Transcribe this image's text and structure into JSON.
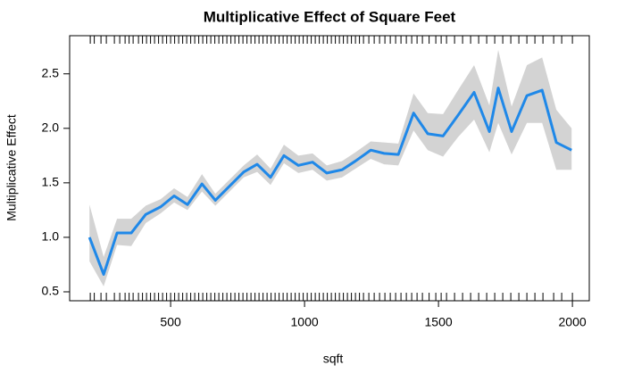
{
  "chart_data": {
    "type": "line",
    "title": "Multiplicative Effect of Square Feet",
    "x_label": "sqft",
    "y_label": "Multiplicative Effect",
    "x": [
      197,
      250,
      300,
      353,
      407,
      463,
      513,
      563,
      617,
      667,
      720,
      773,
      823,
      873,
      923,
      977,
      1030,
      1083,
      1140,
      1190,
      1247,
      1297,
      1350,
      1407,
      1460,
      1517,
      1573,
      1633,
      1690,
      1723,
      1773,
      1830,
      1887,
      1940,
      1997
    ],
    "values": [
      1.0,
      0.66,
      1.04,
      1.04,
      1.21,
      1.28,
      1.38,
      1.3,
      1.49,
      1.34,
      1.47,
      1.6,
      1.67,
      1.55,
      1.75,
      1.66,
      1.69,
      1.59,
      1.62,
      1.7,
      1.8,
      1.77,
      1.76,
      2.14,
      1.95,
      1.93,
      2.12,
      2.33,
      1.97,
      2.37,
      1.97,
      2.3,
      2.35,
      1.87,
      1.8
    ],
    "lower": [
      0.78,
      0.55,
      0.93,
      0.92,
      1.13,
      1.22,
      1.32,
      1.25,
      1.42,
      1.29,
      1.42,
      1.55,
      1.6,
      1.48,
      1.68,
      1.59,
      1.62,
      1.52,
      1.55,
      1.63,
      1.72,
      1.67,
      1.66,
      1.98,
      1.8,
      1.74,
      1.92,
      2.08,
      1.78,
      2.05,
      1.76,
      2.05,
      2.05,
      1.62,
      1.62
    ],
    "upper": [
      1.3,
      0.82,
      1.17,
      1.17,
      1.29,
      1.35,
      1.45,
      1.37,
      1.58,
      1.4,
      1.53,
      1.66,
      1.76,
      1.63,
      1.85,
      1.75,
      1.77,
      1.66,
      1.7,
      1.78,
      1.88,
      1.87,
      1.86,
      2.32,
      2.14,
      2.13,
      2.35,
      2.58,
      2.21,
      2.72,
      2.2,
      2.58,
      2.65,
      2.17,
      2.0
    ],
    "color": "#1f88e8",
    "band_color": "#d3d3d3",
    "rug": [
      200,
      215,
      240,
      260,
      290,
      310,
      330,
      345,
      360,
      380,
      395,
      410,
      425,
      440,
      455,
      470,
      485,
      500,
      515,
      530,
      545,
      560,
      575,
      590,
      605,
      620,
      635,
      650,
      665,
      680,
      695,
      710,
      725,
      740,
      755,
      770,
      785,
      800,
      815,
      830,
      845,
      860,
      875,
      890,
      905,
      920,
      935,
      950,
      965,
      980,
      995,
      1010,
      1025,
      1040,
      1055,
      1070,
      1085,
      1100,
      1115,
      1130,
      1145,
      1160,
      1175,
      1190,
      1205,
      1220,
      1240,
      1260,
      1280,
      1300,
      1320,
      1340,
      1360,
      1380,
      1400,
      1420,
      1440,
      1465,
      1490,
      1510,
      1530,
      1560,
      1590,
      1620,
      1650,
      1680,
      1710,
      1740,
      1770,
      1800,
      1830,
      1860,
      1890,
      1930,
      1960,
      2000
    ],
    "xlim": [
      123,
      2063
    ],
    "ylim": [
      0.418,
      2.85
    ],
    "xticks": [
      500,
      1000,
      1500,
      2000
    ],
    "yticks": [
      0.5,
      {
        "value": 1,
        "label": "1.0"
      },
      1.5,
      {
        "value": 2,
        "label": "2.0"
      },
      2.5
    ]
  }
}
